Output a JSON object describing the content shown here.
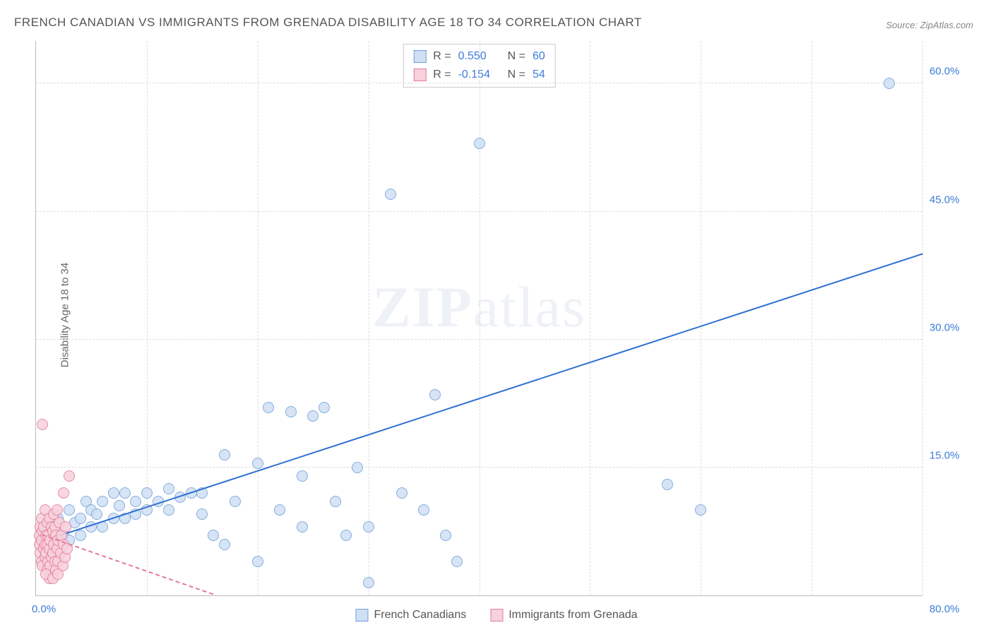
{
  "title": "FRENCH CANADIAN VS IMMIGRANTS FROM GRENADA DISABILITY AGE 18 TO 34 CORRELATION CHART",
  "source": "Source: ZipAtlas.com",
  "ylabel": "Disability Age 18 to 34",
  "watermark": {
    "bold": "ZIP",
    "rest": "atlas"
  },
  "chart": {
    "type": "scatter",
    "xlim": [
      0,
      80
    ],
    "ylim": [
      0,
      65
    ],
    "x_origin_label": "0.0%",
    "x_max_label": "80.0%",
    "ytick_values": [
      15,
      30,
      45,
      60
    ],
    "ytick_labels": [
      "15.0%",
      "30.0%",
      "45.0%",
      "60.0%"
    ],
    "grid_color": "#dddddd",
    "axis_color": "#bbbbbb",
    "tick_label_color": "#3d7bd9",
    "background_color": "#ffffff",
    "point_radius": 8,
    "series": [
      {
        "name": "French Canadians",
        "fill": "#cfe0f5",
        "stroke": "#6f9fd8",
        "line_color": "#2f6fd0",
        "line_dash": "solid",
        "r_label": "R =",
        "r_value": "0.550",
        "n_label": "N =",
        "n_value": "60",
        "trend": {
          "x1": 1,
          "y1": 6.5,
          "x2": 80,
          "y2": 40
        },
        "points": [
          [
            1,
            7
          ],
          [
            1.5,
            8
          ],
          [
            2,
            6
          ],
          [
            2,
            9
          ],
          [
            2.5,
            7
          ],
          [
            3,
            10
          ],
          [
            3,
            6.5
          ],
          [
            3.5,
            8.5
          ],
          [
            4,
            9
          ],
          [
            4,
            7
          ],
          [
            4.5,
            11
          ],
          [
            5,
            10
          ],
          [
            5,
            8
          ],
          [
            5.5,
            9.5
          ],
          [
            6,
            11
          ],
          [
            6,
            8
          ],
          [
            7,
            12
          ],
          [
            7,
            9
          ],
          [
            7.5,
            10.5
          ],
          [
            8,
            12
          ],
          [
            8,
            9
          ],
          [
            9,
            11
          ],
          [
            9,
            9.5
          ],
          [
            10,
            12
          ],
          [
            10,
            10
          ],
          [
            11,
            11
          ],
          [
            12,
            12.5
          ],
          [
            12,
            10
          ],
          [
            13,
            11.5
          ],
          [
            14,
            12
          ],
          [
            15,
            9.5
          ],
          [
            15,
            12
          ],
          [
            16,
            7
          ],
          [
            17,
            16.5
          ],
          [
            18,
            11
          ],
          [
            17,
            6
          ],
          [
            20,
            15.5
          ],
          [
            20,
            4
          ],
          [
            21,
            22
          ],
          [
            22,
            10
          ],
          [
            23,
            21.5
          ],
          [
            24,
            14
          ],
          [
            24,
            8
          ],
          [
            25,
            21
          ],
          [
            26,
            22
          ],
          [
            27,
            11
          ],
          [
            28,
            7
          ],
          [
            29,
            15
          ],
          [
            30,
            8
          ],
          [
            30,
            1.5
          ],
          [
            32,
            47
          ],
          [
            33,
            12
          ],
          [
            35,
            10
          ],
          [
            36,
            23.5
          ],
          [
            37,
            7
          ],
          [
            38,
            4
          ],
          [
            40,
            53
          ],
          [
            57,
            13
          ],
          [
            60,
            10
          ],
          [
            77,
            60
          ]
        ]
      },
      {
        "name": "Immigrants from Grenada",
        "fill": "#f7d1db",
        "stroke": "#e47a98",
        "line_color": "#e47a98",
        "line_dash": "dashed",
        "r_label": "R =",
        "r_value": "-0.154",
        "n_label": "N =",
        "n_value": "54",
        "trend": {
          "x1": 0.5,
          "y1": 7,
          "x2": 16,
          "y2": 0
        },
        "points": [
          [
            0.3,
            6
          ],
          [
            0.3,
            7
          ],
          [
            0.4,
            5
          ],
          [
            0.4,
            8
          ],
          [
            0.5,
            4
          ],
          [
            0.5,
            6.5
          ],
          [
            0.5,
            9
          ],
          [
            0.6,
            3.5
          ],
          [
            0.6,
            7.5
          ],
          [
            0.7,
            5.5
          ],
          [
            0.7,
            8
          ],
          [
            0.8,
            4.5
          ],
          [
            0.8,
            6
          ],
          [
            0.8,
            10
          ],
          [
            0.9,
            7
          ],
          [
            0.9,
            5
          ],
          [
            1.0,
            3
          ],
          [
            1.0,
            8.5
          ],
          [
            1.0,
            6
          ],
          [
            1.1,
            4
          ],
          [
            1.1,
            7
          ],
          [
            1.2,
            5.5
          ],
          [
            1.2,
            9
          ],
          [
            1.3,
            3.5
          ],
          [
            1.3,
            6.5
          ],
          [
            1.4,
            8
          ],
          [
            1.4,
            4.5
          ],
          [
            1.5,
            7.5
          ],
          [
            1.5,
            5
          ],
          [
            1.6,
            9.5
          ],
          [
            1.6,
            6
          ],
          [
            1.7,
            4
          ],
          [
            1.7,
            8
          ],
          [
            1.8,
            3
          ],
          [
            1.8,
            7
          ],
          [
            1.9,
            5.5
          ],
          [
            1.9,
            10
          ],
          [
            2.0,
            6.5
          ],
          [
            2.0,
            4
          ],
          [
            2.1,
            8.5
          ],
          [
            2.2,
            5
          ],
          [
            2.3,
            7
          ],
          [
            2.4,
            3.5
          ],
          [
            2.5,
            6
          ],
          [
            2.5,
            12
          ],
          [
            2.6,
            4.5
          ],
          [
            2.7,
            8
          ],
          [
            2.8,
            5.5
          ],
          [
            3.0,
            14
          ],
          [
            1.2,
            2
          ],
          [
            0.9,
            2.5
          ],
          [
            1.5,
            2
          ],
          [
            2.0,
            2.5
          ],
          [
            0.6,
            20
          ]
        ]
      }
    ]
  },
  "bottom_legend": [
    {
      "label": "French Canadians",
      "fill": "#cfe0f5",
      "stroke": "#6f9fd8"
    },
    {
      "label": "Immigrants from Grenada",
      "fill": "#f7d1db",
      "stroke": "#e47a98"
    }
  ]
}
